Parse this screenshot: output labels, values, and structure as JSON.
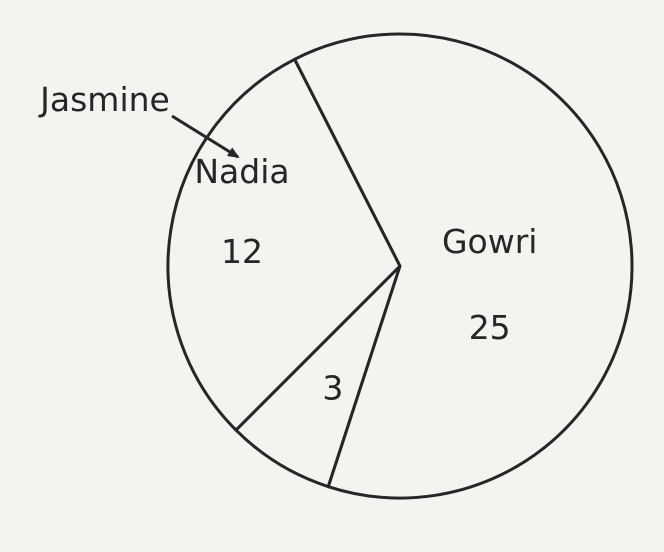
{
  "chart_data": {
    "type": "pie",
    "title": "",
    "slices": [
      {
        "label": "Jasmine",
        "value": 3,
        "label_placement": "outside-callout"
      },
      {
        "label": "Nadia",
        "value": 12,
        "label_placement": "inside"
      },
      {
        "label": "Gowri",
        "value": 25,
        "label_placement": "inside"
      }
    ],
    "total": 40,
    "legend": "none",
    "colors": {
      "background": "#f3f4f0",
      "fill": "#f3f4f0",
      "stroke": "#262626"
    }
  }
}
